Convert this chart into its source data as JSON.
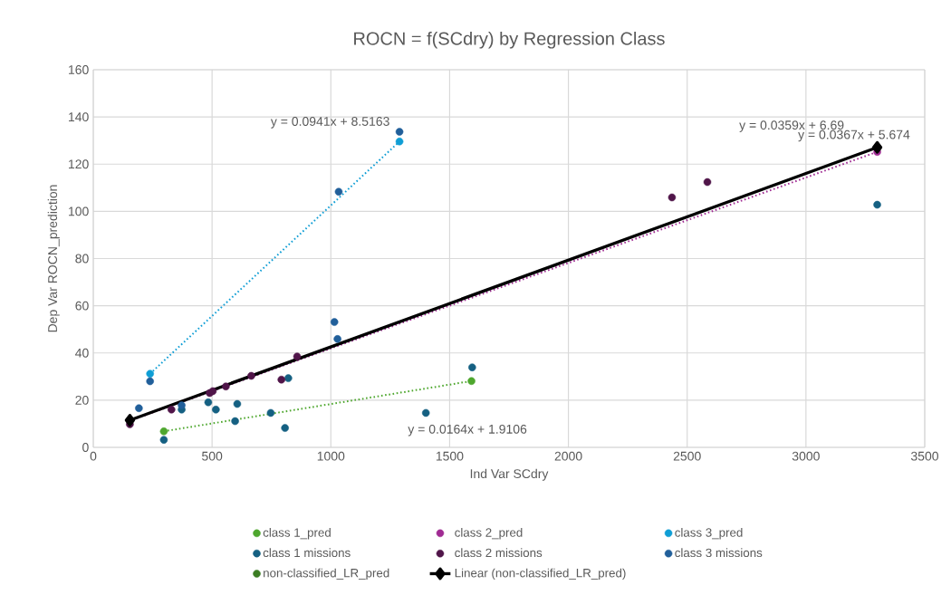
{
  "chart_data": {
    "type": "scatter",
    "title": "ROCN = f(SCdry) by Regression Class",
    "xlabel": "Ind Var SCdry",
    "ylabel": "Dep Var ROCN_prediction",
    "xlim": [
      0,
      3500
    ],
    "xticks": [
      0,
      500,
      1000,
      1500,
      2000,
      2500,
      3000,
      3500
    ],
    "ylim": [
      0,
      160
    ],
    "yticks": [
      0,
      20,
      40,
      60,
      80,
      100,
      120,
      140,
      160
    ],
    "grid": true,
    "legend": "bottom",
    "marker": "circle",
    "series": [
      {
        "name": "class 1_pred",
        "color": "#4ea72e",
        "x": [
          297,
          1592
        ],
        "values": [
          6.8,
          28.1
        ]
      },
      {
        "name": "class 2_pred",
        "color": "#a02b93",
        "x": [
          3300
        ],
        "values": [
          125.2
        ]
      },
      {
        "name": "class 3_pred",
        "color": "#0f9ed5",
        "x": [
          239,
          1289
        ],
        "values": [
          31.2,
          129.6
        ]
      },
      {
        "name": "class 1 missions",
        "color": "#156082",
        "x": [
          297,
          372,
          484,
          516,
          606,
          597,
          747,
          807,
          821,
          1400,
          1595,
          3300
        ],
        "values": [
          3.2,
          16.0,
          19.1,
          16.0,
          18.4,
          11.1,
          14.6,
          8.2,
          29.3,
          14.6,
          33.9,
          102.8
        ]
      },
      {
        "name": "class 2 missions",
        "color": "#501549",
        "x": [
          154,
          329,
          490,
          503,
          558,
          665,
          792,
          858,
          2436,
          2585
        ],
        "values": [
          9.8,
          16.0,
          23.0,
          23.8,
          25.8,
          30.3,
          28.7,
          38.5,
          105.9,
          112.4
        ]
      },
      {
        "name": "class 3 missions",
        "color": "#215f9a",
        "x": [
          192,
          239,
          372,
          1015,
          1028,
          1033,
          1289
        ],
        "values": [
          16.6,
          28.0,
          17.8,
          53.1,
          45.9,
          108.3,
          133.7
        ]
      },
      {
        "name": "non-classified_LR_pred",
        "color": "#3b7d23"
      },
      {
        "type": "line",
        "color": "#4ea72e",
        "marker": "none",
        "line_style": "dotted",
        "x": [
          297,
          1592
        ],
        "values": [
          6.8,
          28.1
        ]
      },
      {
        "type": "line",
        "color": "#a02b93",
        "marker": "none",
        "line_style": "dotted",
        "x": [
          154,
          3300
        ],
        "values": [
          11.3,
          125.2
        ]
      },
      {
        "type": "line",
        "color": "#0f9ed5",
        "marker": "none",
        "line_style": "dotted",
        "x": [
          239,
          1289
        ],
        "values": [
          31.2,
          129.6
        ]
      },
      {
        "name": "Linear (non-classified_LR_pred)",
        "type": "line",
        "color": "#000000",
        "marker": "diamond",
        "line_style": "solid",
        "x": [
          154,
          3300
        ],
        "values": [
          11.5,
          127.1
        ]
      }
    ],
    "annotations": [
      "y = 0.0941x + 8.5163",
      "y = 0.0359x + 6.69",
      "y = 0.0367x + 5.674",
      "y = 0.0164x + 1.9106"
    ]
  }
}
